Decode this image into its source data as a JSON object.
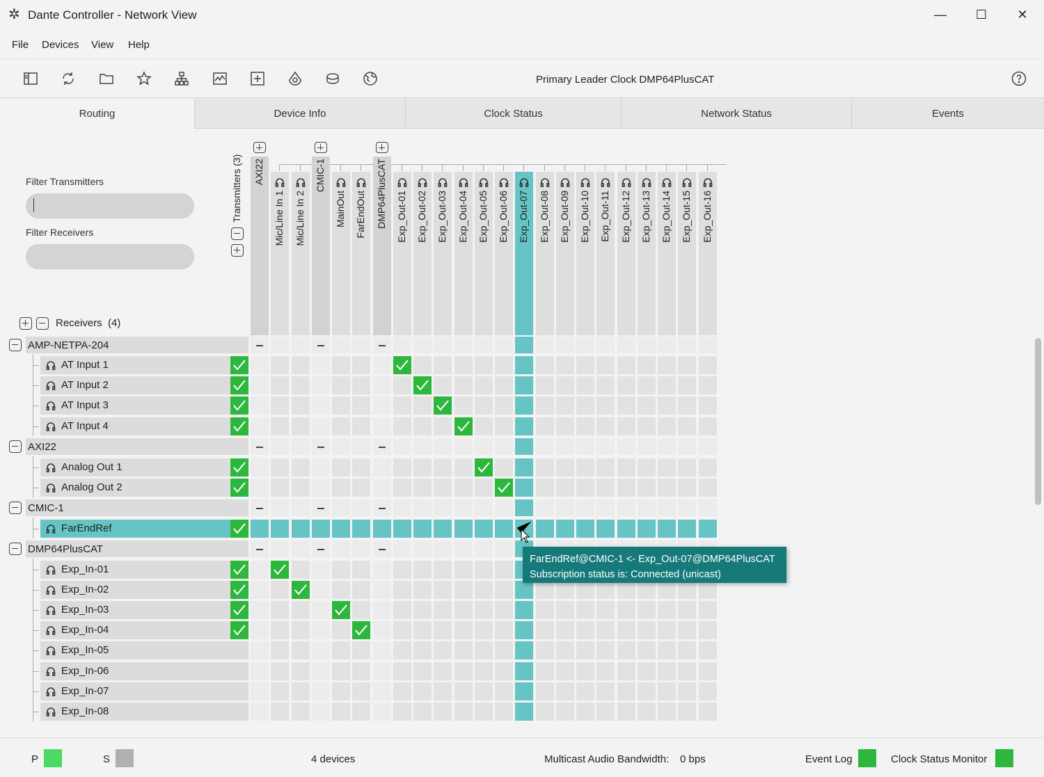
{
  "window": {
    "title": "Dante Controller - Network View",
    "minimize": "—",
    "maximize": "☐",
    "close": "✕"
  },
  "menu": [
    "File",
    "Devices",
    "View",
    "Help"
  ],
  "toolbar": {
    "clock_label": "Primary Leader Clock DMP64PlusCAT",
    "icons": [
      "sidebar-icon",
      "refresh-icon",
      "folder-icon",
      "star-icon",
      "network-icon",
      "chart-icon",
      "add-icon",
      "clock-icon",
      "database-icon",
      "globe-icon"
    ]
  },
  "tabs": [
    {
      "label": "Routing",
      "active": true
    },
    {
      "label": "Device Info"
    },
    {
      "label": "Clock Status"
    },
    {
      "label": "Network Status"
    },
    {
      "label": "Events"
    }
  ],
  "filters": {
    "transmitters_label": "Filter Transmitters",
    "receivers_label": "Filter Receivers",
    "transmitters_value": "",
    "receivers_value": ""
  },
  "transmitters_header": "Transmitters",
  "transmitters_count": "(3)",
  "receivers_header": "Receivers",
  "receivers_count": "(4)",
  "tx_columns": [
    {
      "label": "AXI22",
      "type": "device"
    },
    {
      "label": "Mic/Line In 1",
      "type": "channel"
    },
    {
      "label": "Mic/Line In 2",
      "type": "channel"
    },
    {
      "label": "CMIC-1",
      "type": "device"
    },
    {
      "label": "MainOut",
      "type": "channel"
    },
    {
      "label": "FarEndOut",
      "type": "channel"
    },
    {
      "label": "DMP64PlusCAT",
      "type": "device"
    },
    {
      "label": "Exp_Out-01",
      "type": "channel"
    },
    {
      "label": "Exp_Out-02",
      "type": "channel"
    },
    {
      "label": "Exp_Out-03",
      "type": "channel"
    },
    {
      "label": "Exp_Out-04",
      "type": "channel"
    },
    {
      "label": "Exp_Out-05",
      "type": "channel"
    },
    {
      "label": "Exp_Out-06",
      "type": "channel"
    },
    {
      "label": "Exp_Out-07",
      "type": "channel",
      "selected": true
    },
    {
      "label": "Exp_Out-08",
      "type": "channel"
    },
    {
      "label": "Exp_Out-09",
      "type": "channel"
    },
    {
      "label": "Exp_Out-10",
      "type": "channel"
    },
    {
      "label": "Exp_Out-11",
      "type": "channel"
    },
    {
      "label": "Exp_Out-12",
      "type": "channel"
    },
    {
      "label": "Exp_Out-13",
      "type": "channel"
    },
    {
      "label": "Exp_Out-14",
      "type": "channel"
    },
    {
      "label": "Exp_Out-15",
      "type": "channel"
    },
    {
      "label": "Exp_Out-16",
      "type": "channel"
    }
  ],
  "rx_rows": [
    {
      "label": "AMP-NETPA-204",
      "type": "device"
    },
    {
      "label": "AT Input 1",
      "type": "channel",
      "ok": true,
      "sub": 7
    },
    {
      "label": "AT Input 2",
      "type": "channel",
      "ok": true,
      "sub": 8
    },
    {
      "label": "AT Input 3",
      "type": "channel",
      "ok": true,
      "sub": 9
    },
    {
      "label": "AT Input 4",
      "type": "channel",
      "ok": true,
      "sub": 10
    },
    {
      "label": "AXI22",
      "type": "device"
    },
    {
      "label": "Analog Out 1",
      "type": "channel",
      "ok": true,
      "sub": 11
    },
    {
      "label": "Analog Out 2",
      "type": "channel",
      "ok": true,
      "sub": 12
    },
    {
      "label": "CMIC-1",
      "type": "device"
    },
    {
      "label": "FarEndRef",
      "type": "channel",
      "ok": true,
      "sub": 13,
      "selected": true
    },
    {
      "label": "DMP64PlusCAT",
      "type": "device"
    },
    {
      "label": "Exp_In-01",
      "type": "channel",
      "ok": true,
      "sub": 1
    },
    {
      "label": "Exp_In-02",
      "type": "channel",
      "ok": true,
      "sub": 2
    },
    {
      "label": "Exp_In-03",
      "type": "channel",
      "ok": true,
      "sub": 4
    },
    {
      "label": "Exp_In-04",
      "type": "channel",
      "ok": true,
      "sub": 5
    },
    {
      "label": "Exp_In-05",
      "type": "channel"
    },
    {
      "label": "Exp_In-06",
      "type": "channel"
    },
    {
      "label": "Exp_In-07",
      "type": "channel"
    },
    {
      "label": "Exp_In-08",
      "type": "channel"
    }
  ],
  "tooltip": {
    "line1": "FarEndRef@CMIC-1 <- Exp_Out-07@DMP64PlusCAT",
    "line2": "Subscription status is: Connected (unicast)"
  },
  "status": {
    "p_label": "P",
    "s_label": "S",
    "devices": "4 devices",
    "bandwidth_label": "Multicast Audio Bandwidth:",
    "bandwidth_value": "0 bps",
    "event_log": "Event Log",
    "clock_monitor": "Clock Status Monitor"
  },
  "colors": {
    "accent": "#67c4c4",
    "ok": "#2db83d",
    "tooltip": "#177a7a",
    "p_status": "#4cd964",
    "s_status": "#b0b0b0",
    "event_log": "#2db83d",
    "clock_monitor": "#2db83d"
  }
}
